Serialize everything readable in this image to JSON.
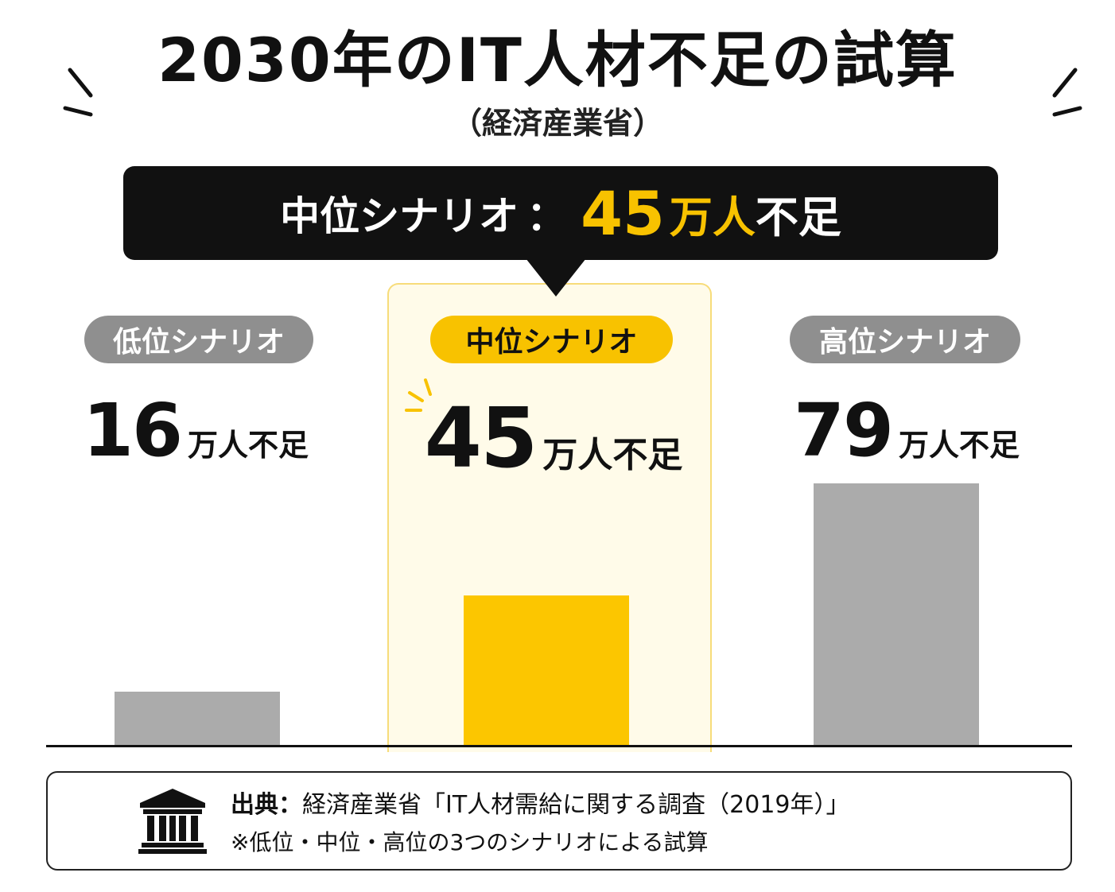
{
  "header": {
    "title": "2030年のIT人材不足の試算",
    "subtitle": "（経済産業省）"
  },
  "callout": {
    "label": "中位シナリオ",
    "separator": "：",
    "value": "45",
    "unit": "万人",
    "suffix": "不足"
  },
  "chart_data": {
    "type": "bar",
    "categories": [
      "低位シナリオ",
      "中位シナリオ",
      "高位シナリオ"
    ],
    "values": [
      16,
      45,
      79
    ],
    "value_labels": [
      "16",
      "45",
      "79"
    ],
    "unit_label": "万人不足",
    "highlight_index": 1,
    "ylim": [
      0,
      84
    ],
    "grid": false,
    "colors": {
      "default": "#ababab",
      "highlight": "#fcc600",
      "pill_default": "#8f8f8f",
      "pill_highlight": "#f8c200"
    }
  },
  "source": {
    "label": "出典",
    "separator": "：",
    "text": "経済産業省「IT人材需給に関する調査（2019年）」",
    "note": "※低位・中位・高位の3つのシナリオによる試算",
    "icon": "institution-icon"
  }
}
